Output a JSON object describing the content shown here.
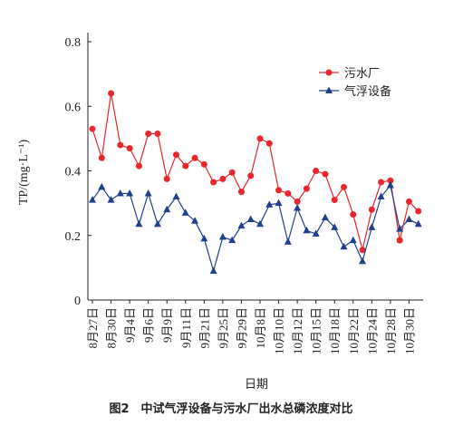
{
  "chart_data": {
    "type": "line",
    "caption": "图2　中试气浮设备与污水厂出水总磷浓度对比",
    "xlabel": "日期",
    "ylabel": "TP/(mg·L⁻¹)",
    "categories": [
      "8月27日",
      null,
      "8月30日",
      null,
      "9月4日",
      null,
      "9月6日",
      null,
      "9月9日",
      null,
      "9月11日",
      null,
      "9月21日",
      null,
      "9月25日",
      null,
      "9月29日",
      null,
      "10月8日",
      null,
      "10月10日",
      null,
      "10月12日",
      null,
      "10月15日",
      null,
      "10月18日",
      null,
      "10月22日",
      null,
      "10月24日",
      null,
      "10月28日",
      null,
      "10月30日",
      null
    ],
    "series": [
      {
        "name": "污水厂",
        "color": "#e8262b",
        "marker": "circle",
        "values": [
          0.53,
          0.44,
          0.64,
          0.48,
          0.47,
          0.415,
          0.515,
          0.515,
          0.375,
          0.45,
          0.415,
          0.44,
          0.42,
          0.365,
          0.375,
          0.395,
          0.335,
          0.385,
          0.5,
          0.485,
          0.34,
          0.33,
          0.305,
          0.345,
          0.4,
          0.39,
          0.31,
          0.35,
          0.265,
          0.155,
          0.28,
          0.365,
          0.37,
          0.185,
          0.305,
          0.275
        ]
      },
      {
        "name": "气浮设备",
        "color": "#1f3f8f",
        "marker": "triangle",
        "values": [
          0.31,
          0.35,
          0.31,
          0.33,
          0.33,
          0.235,
          0.33,
          0.235,
          0.28,
          0.32,
          0.27,
          0.245,
          0.19,
          0.09,
          0.195,
          0.185,
          0.23,
          0.25,
          0.235,
          0.295,
          0.3,
          0.18,
          0.285,
          0.215,
          0.205,
          0.255,
          0.225,
          0.165,
          0.185,
          0.12,
          0.225,
          0.32,
          0.355,
          0.22,
          0.25,
          0.235
        ]
      }
    ],
    "ylim": [
      0,
      0.8
    ],
    "yticks": [
      0,
      0.2,
      0.4,
      0.6,
      0.8
    ],
    "legend": "upper right",
    "grid": false
  }
}
